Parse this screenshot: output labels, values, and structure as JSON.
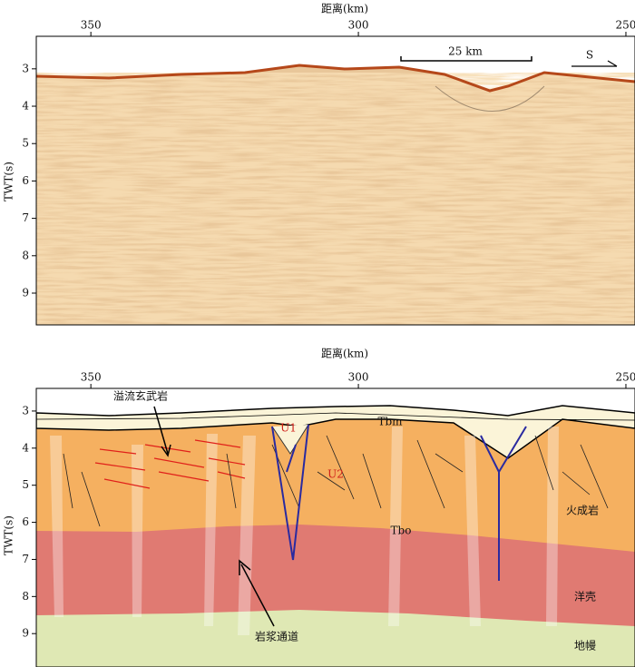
{
  "chart_data": [
    {
      "type": "section",
      "xlabel": "距离(km)",
      "ylabel": "TWT(s)",
      "xlim": [
        360.2,
        248.3
      ],
      "xticks": [
        350,
        300,
        250
      ],
      "ylim": [
        2.13,
        9.85
      ],
      "yticks": [
        3,
        4,
        5,
        6,
        7,
        8,
        9
      ],
      "annotations": [
        "25 km",
        "S"
      ]
    },
    {
      "type": "section",
      "xlabel": "距离(km)",
      "ylabel": "TWT(s)",
      "xlim": [
        360.2,
        248.3
      ],
      "xticks": [
        350,
        300,
        250
      ],
      "ylim": [
        2.39,
        9.9
      ],
      "yticks": [
        3,
        4,
        5,
        6,
        7,
        8,
        9
      ],
      "annotations": [
        "溢流玄武岩",
        "Tbm",
        "U1",
        "U2",
        "火成岩",
        "Tbo",
        "洋壳",
        "岩浆通道",
        "地幔"
      ]
    }
  ]
}
